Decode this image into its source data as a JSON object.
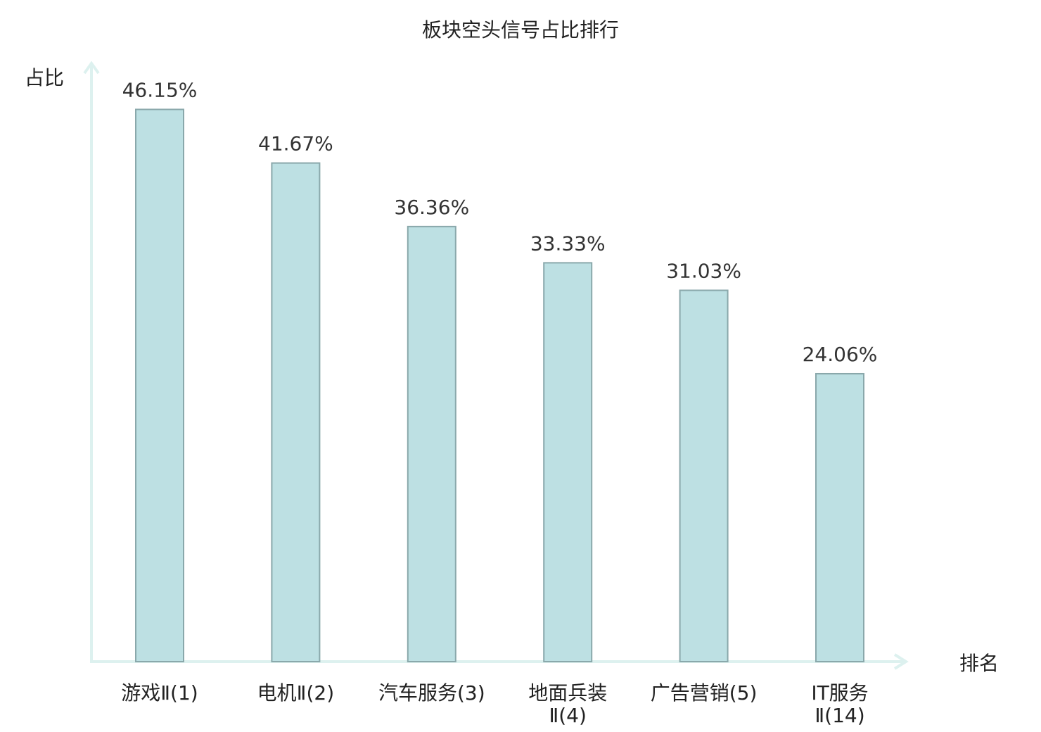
{
  "chart_data": {
    "type": "bar",
    "title": "板块空头信号占比排行",
    "xlabel": "排名",
    "ylabel": "占比",
    "categories": [
      [
        "游戏Ⅱ(1)"
      ],
      [
        "电机Ⅱ(2)"
      ],
      [
        "汽车服务(3)"
      ],
      [
        "地面兵装",
        "Ⅱ(4)"
      ],
      [
        "广告营销(5)"
      ],
      [
        "IT服务",
        "Ⅱ(14)"
      ]
    ],
    "values": [
      46.15,
      41.67,
      36.36,
      33.33,
      31.03,
      24.06
    ],
    "value_labels": [
      "46.15%",
      "41.67%",
      "36.36%",
      "33.33%",
      "31.03%",
      "24.06%"
    ],
    "highlight_index": 5,
    "ylim": [
      0,
      50
    ],
    "grid": false,
    "legend": "none",
    "colors": {
      "bar_fill": "#bde0e3",
      "bar_stroke": "#8aa8ab",
      "axis": "#ddf1ef",
      "highlight_text": "#e02020",
      "text": "#222222"
    }
  }
}
